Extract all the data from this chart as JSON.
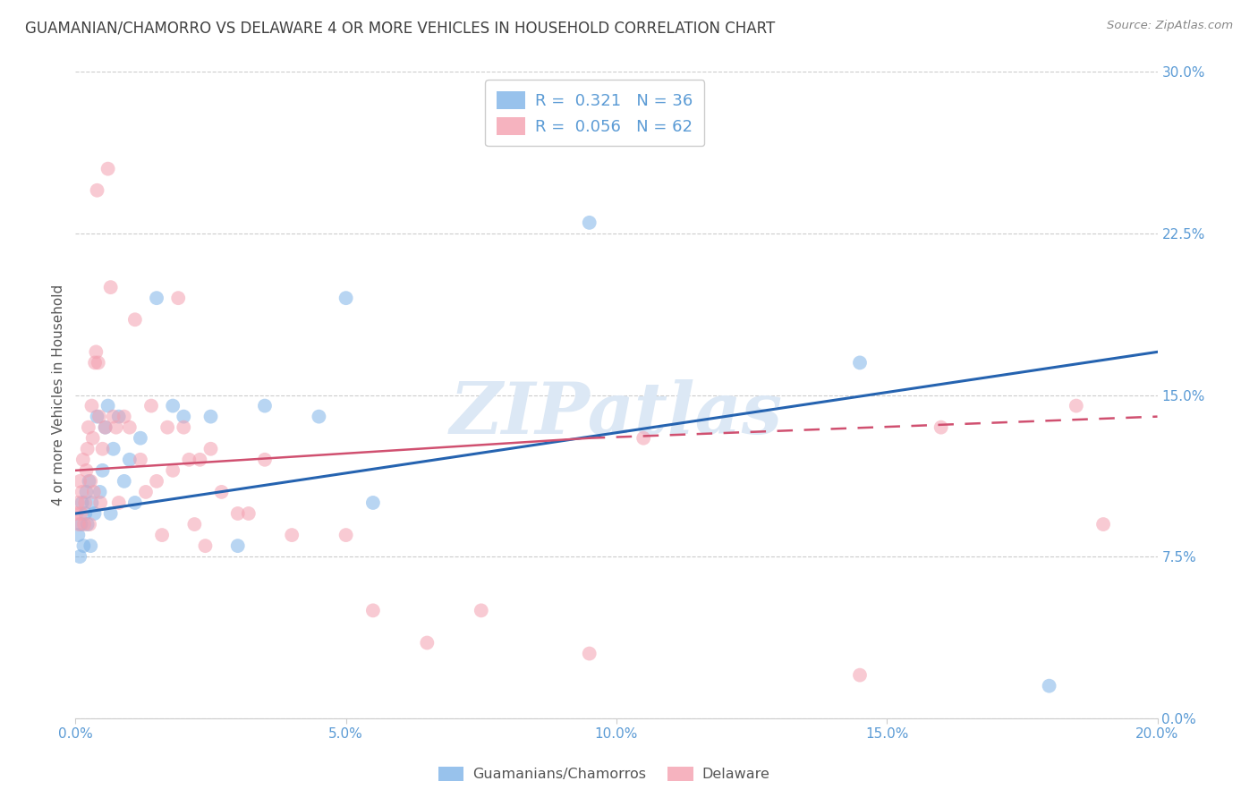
{
  "title": "GUAMANIAN/CHAMORRO VS DELAWARE 4 OR MORE VEHICLES IN HOUSEHOLD CORRELATION CHART",
  "source": "Source: ZipAtlas.com",
  "ylabel": "4 or more Vehicles in Household",
  "xmin": 0.0,
  "xmax": 20.0,
  "ymin": 0.0,
  "ymax": 30.0,
  "yticks": [
    0.0,
    7.5,
    15.0,
    22.5,
    30.0
  ],
  "xticks": [
    0.0,
    5.0,
    10.0,
    15.0,
    20.0
  ],
  "blue_scatter_x": [
    0.05,
    0.08,
    0.1,
    0.12,
    0.15,
    0.18,
    0.2,
    0.22,
    0.25,
    0.28,
    0.3,
    0.35,
    0.4,
    0.45,
    0.5,
    0.55,
    0.6,
    0.65,
    0.7,
    0.8,
    0.9,
    1.0,
    1.1,
    1.2,
    1.5,
    1.8,
    2.0,
    2.5,
    3.0,
    3.5,
    4.5,
    5.0,
    5.5,
    9.5,
    14.5,
    18.0
  ],
  "blue_scatter_y": [
    8.5,
    7.5,
    9.0,
    10.0,
    8.0,
    9.5,
    10.5,
    9.0,
    11.0,
    8.0,
    10.0,
    9.5,
    14.0,
    10.5,
    11.5,
    13.5,
    14.5,
    9.5,
    12.5,
    14.0,
    11.0,
    12.0,
    10.0,
    13.0,
    19.5,
    14.5,
    14.0,
    14.0,
    8.0,
    14.5,
    14.0,
    19.5,
    10.0,
    23.0,
    16.5,
    1.5
  ],
  "pink_scatter_x": [
    0.02,
    0.04,
    0.06,
    0.08,
    0.1,
    0.12,
    0.14,
    0.16,
    0.18,
    0.2,
    0.22,
    0.24,
    0.26,
    0.28,
    0.3,
    0.32,
    0.34,
    0.36,
    0.38,
    0.4,
    0.42,
    0.44,
    0.46,
    0.5,
    0.55,
    0.6,
    0.65,
    0.7,
    0.75,
    0.8,
    0.9,
    1.0,
    1.1,
    1.2,
    1.3,
    1.4,
    1.5,
    1.6,
    1.7,
    1.8,
    1.9,
    2.0,
    2.1,
    2.2,
    2.3,
    2.4,
    2.5,
    2.7,
    3.0,
    3.2,
    3.5,
    4.0,
    5.0,
    5.5,
    6.5,
    7.5,
    9.5,
    10.5,
    14.5,
    16.0,
    18.5,
    19.0
  ],
  "pink_scatter_y": [
    9.5,
    10.0,
    9.0,
    11.0,
    9.5,
    10.5,
    12.0,
    9.0,
    10.0,
    11.5,
    12.5,
    13.5,
    9.0,
    11.0,
    14.5,
    13.0,
    10.5,
    16.5,
    17.0,
    24.5,
    16.5,
    14.0,
    10.0,
    12.5,
    13.5,
    25.5,
    20.0,
    14.0,
    13.5,
    10.0,
    14.0,
    13.5,
    18.5,
    12.0,
    10.5,
    14.5,
    11.0,
    8.5,
    13.5,
    11.5,
    19.5,
    13.5,
    12.0,
    9.0,
    12.0,
    8.0,
    12.5,
    10.5,
    9.5,
    9.5,
    12.0,
    8.5,
    8.5,
    5.0,
    3.5,
    5.0,
    3.0,
    13.0,
    2.0,
    13.5,
    14.5,
    9.0
  ],
  "blue_line_x0": 0.0,
  "blue_line_x1": 20.0,
  "blue_line_y0": 9.5,
  "blue_line_y1": 17.0,
  "pink_line_solid_x0": 0.0,
  "pink_line_solid_x1": 9.5,
  "pink_line_solid_y0": 11.5,
  "pink_line_solid_y1": 13.0,
  "pink_line_dashed_x0": 9.5,
  "pink_line_dashed_x1": 20.0,
  "pink_line_dashed_y0": 13.0,
  "pink_line_dashed_y1": 14.0,
  "blue_color": "#7eb3e8",
  "pink_color": "#f4a0b0",
  "blue_line_color": "#2563b0",
  "pink_line_color": "#d05070",
  "background_color": "#ffffff",
  "grid_color": "#cccccc",
  "title_color": "#404040",
  "tick_color": "#5b9bd5",
  "watermark_color": "#dce8f5",
  "legend_R_blue": "0.321",
  "legend_N_blue": "36",
  "legend_R_pink": "0.056",
  "legend_N_pink": "62",
  "legend_label_blue": "Guamanians/Chamorros",
  "legend_label_pink": "Delaware"
}
